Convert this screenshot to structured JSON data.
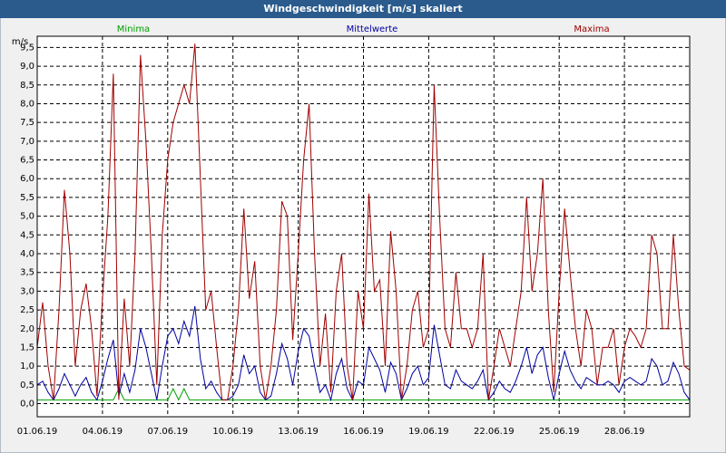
{
  "chart_data": {
    "type": "line",
    "title": "Windgeschwindigkeit [m/s] skaliert",
    "y_label": "m/s",
    "x": [
      0,
      0.25,
      0.5,
      0.75,
      1,
      1.25,
      1.5,
      1.75,
      2,
      2.25,
      2.5,
      2.75,
      3,
      3.25,
      3.5,
      3.75,
      4,
      4.25,
      4.5,
      4.75,
      5,
      5.25,
      5.5,
      5.75,
      6,
      6.25,
      6.5,
      6.75,
      7,
      7.25,
      7.5,
      7.75,
      8,
      8.25,
      8.5,
      8.75,
      9,
      9.25,
      9.5,
      9.75,
      10,
      10.25,
      10.5,
      10.75,
      11,
      11.25,
      11.5,
      11.75,
      12,
      12.25,
      12.5,
      12.75,
      13,
      13.25,
      13.5,
      13.75,
      14,
      14.25,
      14.5,
      14.75,
      15,
      15.25,
      15.5,
      15.75,
      16,
      16.25,
      16.5,
      16.75,
      17,
      17.25,
      17.5,
      17.75,
      18,
      18.25,
      18.5,
      18.75,
      19,
      19.25,
      19.5,
      19.75,
      20,
      20.25,
      20.5,
      20.75,
      21,
      21.25,
      21.5,
      21.75,
      22,
      22.25,
      22.5,
      22.75,
      23,
      23.25,
      23.5,
      23.75,
      24,
      24.25,
      24.5,
      24.75,
      25,
      25.25,
      25.5,
      25.75,
      26,
      26.25,
      26.5,
      26.75,
      27,
      27.25,
      27.5,
      27.75,
      28,
      28.25,
      28.5,
      28.75,
      29,
      29.25,
      29.5,
      29.75,
      30
    ],
    "series": [
      {
        "name": "Minima",
        "color": "#00a000",
        "values": [
          0.1,
          0.1,
          0.1,
          0.1,
          0.1,
          0.1,
          0.1,
          0.1,
          0.1,
          0.1,
          0.1,
          0.1,
          0.1,
          0.1,
          0.1,
          0.4,
          0.1,
          0.1,
          0.1,
          0.1,
          0.1,
          0.1,
          0.1,
          0.1,
          0.1,
          0.4,
          0.1,
          0.4,
          0.1,
          0.1,
          0.1,
          0.1,
          0.1,
          0.1,
          0.1,
          0.1,
          0.1,
          0.1,
          0.1,
          0.1,
          0.1,
          0.1,
          0.1,
          0.1,
          0.1,
          0.1,
          0.1,
          0.1,
          0.1,
          0.1,
          0.1,
          0.1,
          0.1,
          0.1,
          0.1,
          0.1,
          0.1,
          0.1,
          0.1,
          0.1,
          0.1,
          0.1,
          0.1,
          0.1,
          0.1,
          0.1,
          0.1,
          0.1,
          0.1,
          0.1,
          0.1,
          0.1,
          0.1,
          0.1,
          0.1,
          0.1,
          0.1,
          0.1,
          0.1,
          0.1,
          0.1,
          0.1,
          0.1,
          0.1,
          0.1,
          0.1,
          0.1,
          0.1,
          0.1,
          0.1,
          0.1,
          0.1,
          0.1,
          0.1,
          0.1,
          0.1,
          0.1,
          0.1,
          0.1,
          0.1,
          0.1,
          0.1,
          0.1,
          0.1,
          0.1,
          0.1,
          0.1,
          0.1,
          0.1,
          0.1,
          0.1,
          0.1,
          0.1,
          0.1,
          0.1,
          0.1,
          0.1,
          0.1,
          0.1,
          0.1,
          0.1
        ]
      },
      {
        "name": "Mittelwerte",
        "color": "#0000a0",
        "values": [
          0.5,
          0.6,
          0.3,
          0.1,
          0.4,
          0.8,
          0.5,
          0.2,
          0.5,
          0.7,
          0.3,
          0.1,
          0.6,
          1.2,
          1.7,
          0.2,
          0.8,
          0.3,
          0.9,
          2.0,
          1.5,
          0.8,
          0.1,
          1.0,
          1.8,
          2.0,
          1.6,
          2.2,
          1.8,
          2.6,
          1.2,
          0.4,
          0.6,
          0.3,
          0.1,
          0.1,
          0.2,
          0.5,
          1.3,
          0.8,
          1.0,
          0.3,
          0.1,
          0.2,
          0.8,
          1.6,
          1.2,
          0.5,
          1.4,
          2.0,
          1.8,
          1.0,
          0.3,
          0.5,
          0.1,
          0.8,
          1.2,
          0.4,
          0.1,
          0.6,
          0.5,
          1.5,
          1.2,
          0.9,
          0.3,
          1.1,
          0.8,
          0.1,
          0.4,
          0.8,
          1.0,
          0.5,
          0.7,
          2.1,
          1.3,
          0.5,
          0.4,
          0.9,
          0.6,
          0.5,
          0.4,
          0.6,
          0.9,
          0.1,
          0.3,
          0.6,
          0.4,
          0.3,
          0.6,
          1.0,
          1.5,
          0.8,
          1.3,
          1.5,
          0.7,
          0.1,
          0.8,
          1.4,
          0.9,
          0.6,
          0.4,
          0.7,
          0.6,
          0.5,
          0.5,
          0.6,
          0.5,
          0.3,
          0.6,
          0.7,
          0.6,
          0.5,
          0.6,
          1.2,
          1.0,
          0.5,
          0.6,
          1.1,
          0.8,
          0.3,
          0.1
        ]
      },
      {
        "name": "Maxima",
        "color": "#a00000",
        "values": [
          1.5,
          2.7,
          1.0,
          0.1,
          2.5,
          5.7,
          4.0,
          1.0,
          2.5,
          3.2,
          2.0,
          0.2,
          2.8,
          5.0,
          8.8,
          0.1,
          2.8,
          1.0,
          4.0,
          9.3,
          7.0,
          4.0,
          0.5,
          4.5,
          6.5,
          7.5,
          8.0,
          8.5,
          8.0,
          9.6,
          6.0,
          2.5,
          3.0,
          1.5,
          0.1,
          0.1,
          1.0,
          2.5,
          5.2,
          2.8,
          3.8,
          1.0,
          0.1,
          1.0,
          2.5,
          5.4,
          5.0,
          1.7,
          4.0,
          6.5,
          8.0,
          4.0,
          1.0,
          2.4,
          0.3,
          3.0,
          4.0,
          1.0,
          0.1,
          3.0,
          2.0,
          5.6,
          3.0,
          3.3,
          1.0,
          4.6,
          3.0,
          0.1,
          1.0,
          2.5,
          3.0,
          1.5,
          2.0,
          8.5,
          5.0,
          2.0,
          1.5,
          3.5,
          2.0,
          2.0,
          1.5,
          2.0,
          4.0,
          0.1,
          1.0,
          2.0,
          1.5,
          1.0,
          2.0,
          3.0,
          5.5,
          3.0,
          4.0,
          6.0,
          2.5,
          0.3,
          3.0,
          5.2,
          3.5,
          2.0,
          1.0,
          2.5,
          2.0,
          0.5,
          1.5,
          1.5,
          2.0,
          0.5,
          1.5,
          2.0,
          1.8,
          1.5,
          2.0,
          4.5,
          4.0,
          2.0,
          2.0,
          4.5,
          2.5,
          1.0,
          0.9
        ]
      }
    ],
    "xlim": [
      0,
      30
    ],
    "xticks": [
      {
        "value": 0,
        "label": "01.06.19"
      },
      {
        "value": 3,
        "label": "04.06.19"
      },
      {
        "value": 6,
        "label": "07.06.19"
      },
      {
        "value": 9,
        "label": "10.06.19"
      },
      {
        "value": 12,
        "label": "13.06.19"
      },
      {
        "value": 15,
        "label": "16.06.19"
      },
      {
        "value": 18,
        "label": "19.06.19"
      },
      {
        "value": 21,
        "label": "22.06.19"
      },
      {
        "value": 24,
        "label": "25.06.19"
      },
      {
        "value": 27,
        "label": "28.06.19"
      }
    ],
    "ylim": [
      -0.35,
      9.8
    ],
    "yticks": [
      {
        "value": 0,
        "label": "0,0"
      },
      {
        "value": 0.5,
        "label": "0,5"
      },
      {
        "value": 1,
        "label": "1,0"
      },
      {
        "value": 1.5,
        "label": "1,5"
      },
      {
        "value": 2,
        "label": "2,0"
      },
      {
        "value": 2.5,
        "label": "2,5"
      },
      {
        "value": 3,
        "label": "3,0"
      },
      {
        "value": 3.5,
        "label": "3,5"
      },
      {
        "value": 4,
        "label": "4,0"
      },
      {
        "value": 4.5,
        "label": "4,5"
      },
      {
        "value": 5,
        "label": "5,0"
      },
      {
        "value": 5.5,
        "label": "5,5"
      },
      {
        "value": 6,
        "label": "6,0"
      },
      {
        "value": 6.5,
        "label": "6,5"
      },
      {
        "value": 7,
        "label": "7,0"
      },
      {
        "value": 7.5,
        "label": "7,5"
      },
      {
        "value": 8,
        "label": "8,0"
      },
      {
        "value": 8.5,
        "label": "8,5"
      },
      {
        "value": 9,
        "label": "9,0"
      },
      {
        "value": 9.5,
        "label": "9,5"
      }
    ],
    "grid": true
  }
}
